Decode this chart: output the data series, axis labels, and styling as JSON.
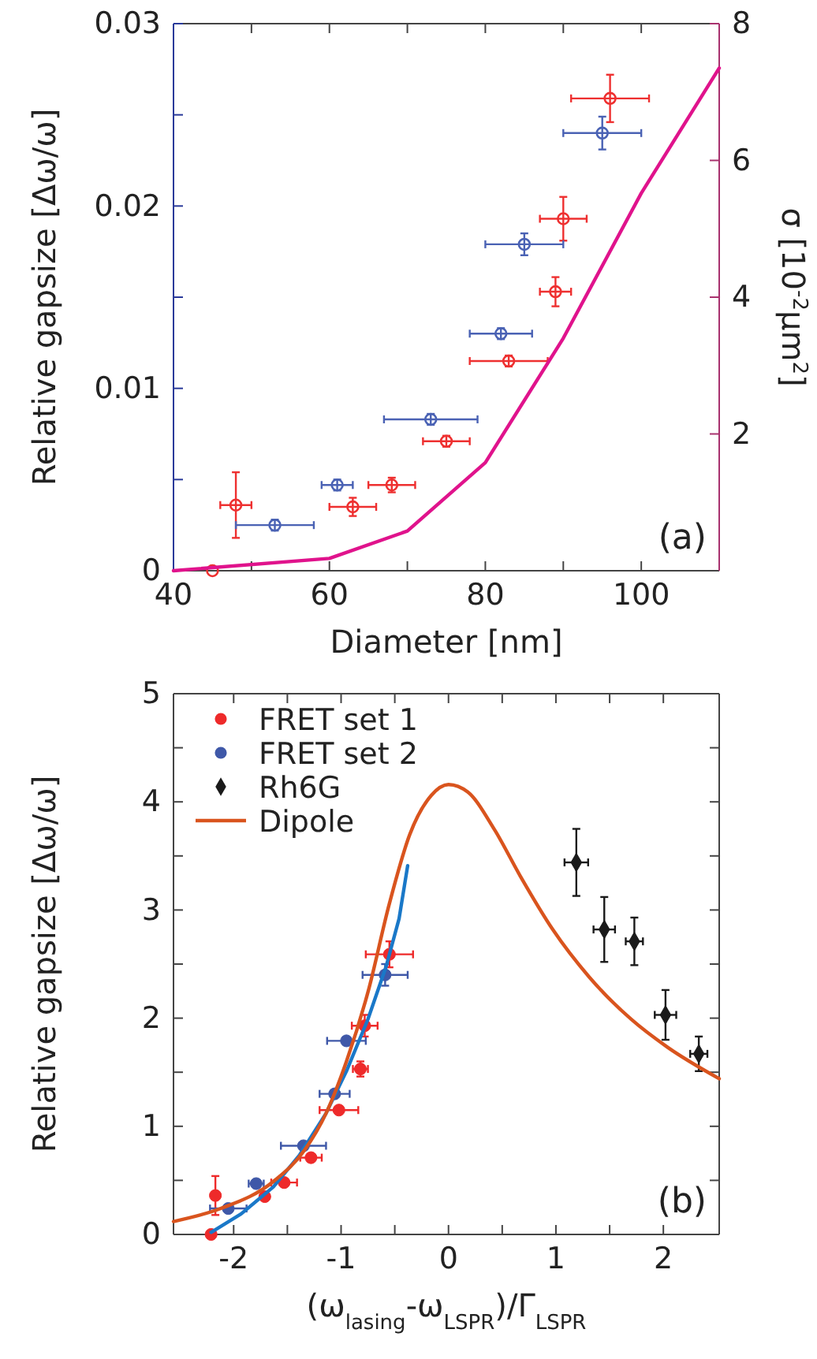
{
  "chart_data": [
    {
      "type": "scatter",
      "xlabel": "Diameter [nm]",
      "ylabel": "Relative gapsize [Δω/ω]",
      "y2label": "σ [10$^{-2}$μm$^{2}$]",
      "annotations": [
        "(a)"
      ],
      "xlim": [
        40,
        110
      ],
      "xticks": [
        40,
        {
          "value": 50,
          "label": null
        },
        60,
        {
          "value": 70,
          "label": null
        },
        80,
        {
          "value": 90,
          "label": null
        },
        100
      ],
      "ylim": [
        0,
        0.03
      ],
      "yticks": [
        0,
        {
          "value": 0.005,
          "label": null
        },
        0.01,
        {
          "value": 0.015,
          "label": null
        },
        0.02,
        {
          "value": 0.025,
          "label": null
        },
        0.03
      ],
      "y2lim": [
        0,
        8
      ],
      "y2ticks": [
        2,
        4,
        6,
        8
      ],
      "grid": false,
      "legend": false,
      "marker": "circle",
      "series": [
        {
          "color": "#ee3030",
          "x": [
            45,
            48,
            63,
            68,
            75,
            83,
            89,
            90,
            96
          ],
          "values": [
            0,
            0.0036,
            0.0035,
            0.0047,
            0.0071,
            0.0115,
            0.0153,
            0.0193,
            0.0259
          ],
          "xerrors": [
            null,
            2,
            3,
            3,
            3,
            5,
            2,
            3,
            5
          ],
          "errors": [
            null,
            0.0018,
            0.0005,
            0.0004,
            0.0003,
            0.0003,
            0.0008,
            0.0012,
            0.0013
          ]
        },
        {
          "color": "#4a62b4",
          "x": [
            53,
            61,
            73,
            82,
            85,
            95
          ],
          "values": [
            0.0025,
            0.0047,
            0.0083,
            0.013,
            0.0179,
            0.024
          ],
          "xerrors": [
            5,
            2,
            6,
            4,
            5,
            5
          ],
          "errors": [
            0.0003,
            0.0003,
            0.0003,
            0.0003,
            0.0006,
            0.0009
          ]
        },
        {
          "type": "line",
          "axis": "y2",
          "color": "#e0138c",
          "marker": "none",
          "x": [
            40,
            60,
            70,
            80,
            90,
            100,
            110
          ],
          "values": [
            0,
            0.18,
            0.58,
            1.58,
            3.4,
            5.52,
            7.35
          ]
        }
      ]
    },
    {
      "type": "scatter",
      "xlabel": "(ω$_{lasing}$-ω$_{LSPR}$)/Γ$_{LSPR}$",
      "ylabel": "Relative gapsize [Δω/ω]",
      "annotations": [
        "(b)"
      ],
      "xlim": [
        -2.56,
        2.52
      ],
      "xticks": [
        -2,
        {
          "value": -1.5,
          "label": null
        },
        -1,
        {
          "value": -0.5,
          "label": null
        },
        0,
        {
          "value": 0.5,
          "label": null
        },
        1,
        {
          "value": 1.5,
          "label": null
        },
        2
      ],
      "ylim": [
        0,
        5
      ],
      "yticks": [
        0,
        {
          "value": 0.5,
          "label": null
        },
        1,
        {
          "value": 1.5,
          "label": null
        },
        2,
        {
          "value": 2.5,
          "label": null
        },
        3,
        {
          "value": 3.5,
          "label": null
        },
        4,
        {
          "value": 4.5,
          "label": null
        },
        5
      ],
      "grid": false,
      "legend": "top left",
      "marker": "circle",
      "series": [
        {
          "name": "FRET set 1",
          "color": "#ee2a2a",
          "x": [
            -2.21,
            -2.17,
            -1.71,
            -1.53,
            -1.28,
            -1.02,
            -0.82,
            -0.78,
            -0.55
          ],
          "values": [
            0,
            0.36,
            0.35,
            0.48,
            0.71,
            1.15,
            1.53,
            1.93,
            2.59
          ],
          "xerrors": [
            null,
            null,
            null,
            0.12,
            0.1,
            0.18,
            0.07,
            0.12,
            0.22
          ],
          "errors": [
            null,
            0.18,
            null,
            null,
            null,
            null,
            0.07,
            0.1,
            0.12
          ]
        },
        {
          "name": "FRET set 2",
          "color": "#3f58a8",
          "x": [
            -2.05,
            -1.79,
            -1.35,
            -1.06,
            -0.95,
            -0.59
          ],
          "values": [
            0.24,
            0.47,
            0.82,
            1.3,
            1.79,
            2.4
          ],
          "xerrors": [
            0.17,
            0.07,
            0.21,
            0.14,
            0.18,
            0.21
          ],
          "errors": [
            null,
            null,
            null,
            null,
            null,
            0.1
          ]
        },
        {
          "name": "Rh6G",
          "color": "#1a1a1a",
          "marker": "diamond",
          "x": [
            1.19,
            1.45,
            1.73,
            2.02,
            2.33
          ],
          "values": [
            3.44,
            2.82,
            2.71,
            2.03,
            1.67
          ],
          "xerrors": [
            0.11,
            0.1,
            0.08,
            0.1,
            0.08
          ],
          "errors": [
            0.31,
            0.3,
            0.22,
            0.23,
            0.16
          ]
        },
        {
          "type": "line",
          "color": "#1a78c8",
          "marker": "none",
          "x": [
            -2.21,
            -1.93,
            -1.63,
            -1.39,
            -1.14,
            -0.95,
            -0.75,
            -0.58,
            -0.46,
            -0.38
          ],
          "values": [
            0.02,
            0.19,
            0.44,
            0.73,
            1.12,
            1.51,
            1.99,
            2.48,
            2.92,
            3.41
          ]
        },
        {
          "type": "line",
          "name": "Dipole",
          "color": "#d9541e",
          "marker": "none",
          "x": [
            -2.56,
            -2.12,
            -1.63,
            -1.34,
            -1.14,
            -0.95,
            -0.75,
            -0.55,
            -0.36,
            -0.16,
            0,
            0.18,
            0.43,
            0.67,
            0.97,
            1.31,
            1.7,
            2.04,
            2.52
          ],
          "values": [
            0.12,
            0.24,
            0.49,
            0.78,
            1.12,
            1.6,
            2.24,
            3.06,
            3.7,
            4.06,
            4.16,
            4.09,
            3.74,
            3.31,
            2.82,
            2.38,
            1.99,
            1.73,
            1.44
          ]
        }
      ]
    }
  ]
}
